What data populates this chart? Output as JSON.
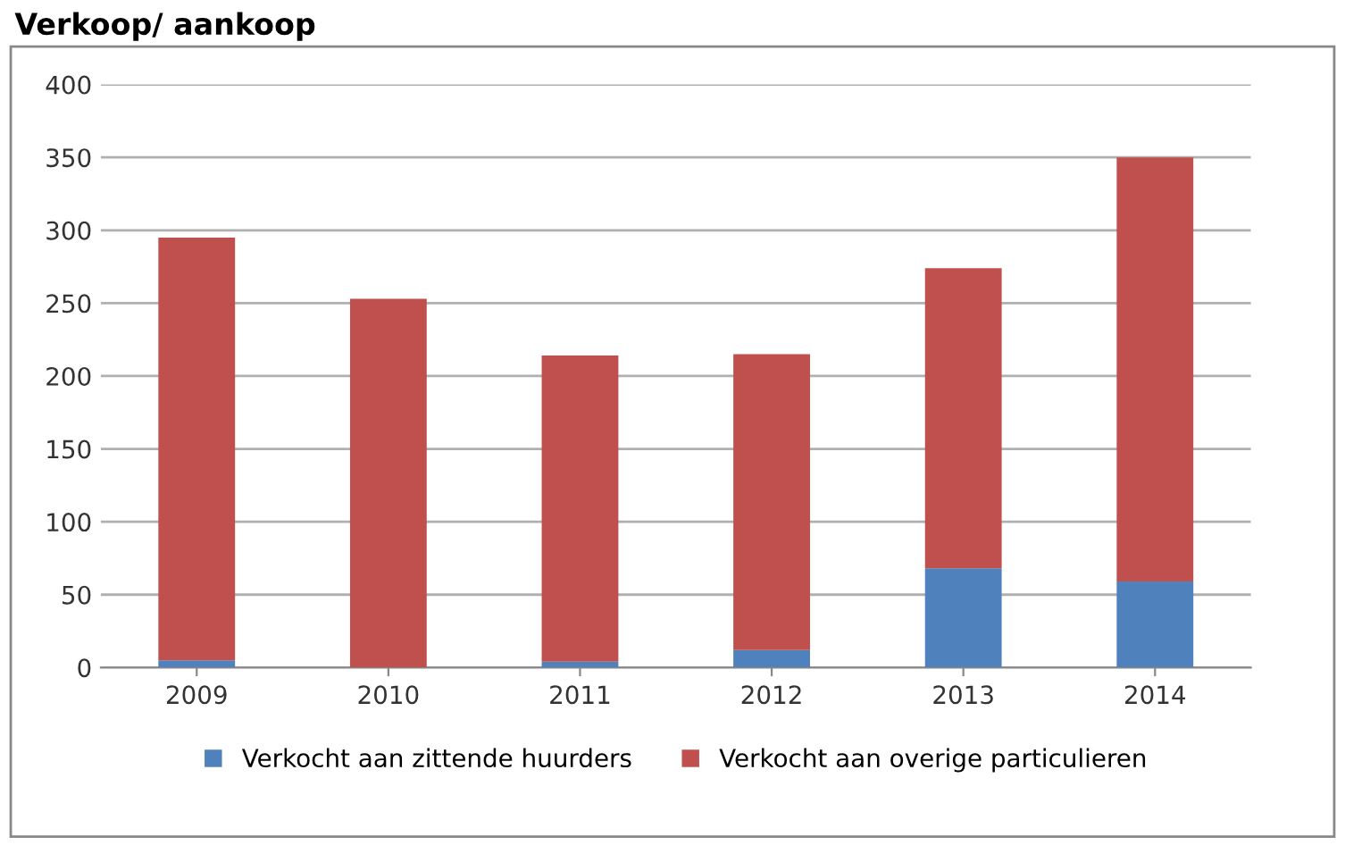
{
  "chart_data": {
    "type": "bar",
    "title": "Verkoop/ aankoop",
    "categories": [
      "2009",
      "2010",
      "2011",
      "2012",
      "2013",
      "2014"
    ],
    "series": [
      {
        "name": "Verkocht aan zittende huurders",
        "color": "#4f81bd",
        "values": [
          5,
          0,
          4,
          12,
          68,
          59
        ]
      },
      {
        "name": "Verkocht aan overige particulieren",
        "color": "#c0504d",
        "values": [
          290,
          253,
          210,
          203,
          206,
          291
        ]
      }
    ],
    "stacked": true,
    "ylim": [
      0,
      400
    ],
    "yticks": [
      0,
      50,
      100,
      150,
      200,
      250,
      300,
      350,
      400
    ],
    "grid": "y",
    "legend": "bottom"
  }
}
